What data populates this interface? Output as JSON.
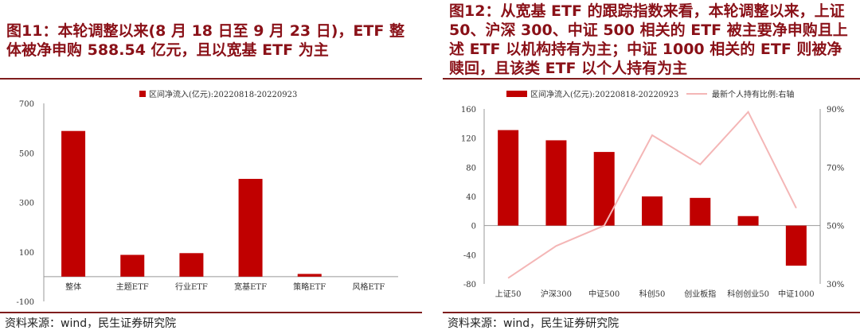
{
  "left": {
    "fig_title": "图11：本轮调整以来(8 月 18 日至 9 月 23 日)，ETF 整体被净申购 588.54 亿元，且以宽基 ETF 为主",
    "source": "资料来源：wind，民生证券研究院"
  },
  "right": {
    "fig_title": "图12：从宽基 ETF 的跟踪指数来看，本轮调整以来，上证 50、沪深 300、中证 500 相关的 ETF 被主要净申购且上述 ETF 以机构持有为主；中证 1000 相关的 ETF 则被净赎回，且该类 ETF 以个人持有为主",
    "source": "资料来源：wind，民生证券研究院"
  },
  "colors": {
    "bar": "#c00000",
    "line": "#f4b6b6",
    "title": "#8a1118",
    "rule": "#7f1d1d"
  },
  "chart_data": [
    {
      "type": "bar",
      "title": "",
      "categories": [
        "整体",
        "主题ETF",
        "行业ETF",
        "宽基ETF",
        "策略ETF",
        "风格ETF"
      ],
      "series": [
        {
          "name": "区间净流入(亿元):20220818-20220923",
          "values": [
            588.54,
            88,
            95,
            395,
            11,
            0
          ]
        }
      ],
      "y_ticks": [
        "700",
        "500",
        "300",
        "100",
        "-100"
      ],
      "ylim": [
        -100,
        700
      ],
      "legend": "top-center",
      "grid": false
    },
    {
      "type": "bar",
      "title": "",
      "categories": [
        "上证50",
        "沪深300",
        "中证500",
        "科创50",
        "创业板指",
        "科创创业50",
        "中证1000"
      ],
      "series": [
        {
          "name": "区间净流入(亿元):20220818-20220923",
          "type": "bar",
          "axis": "left",
          "values": [
            131,
            117,
            101,
            40,
            38,
            13,
            -55
          ]
        },
        {
          "name": "最新个人持有比例:右轴",
          "type": "line",
          "axis": "right",
          "values": [
            32,
            43,
            50,
            81,
            71,
            89,
            56
          ]
        }
      ],
      "y_ticks_left": [
        "160",
        "120",
        "80",
        "40",
        "0",
        "-40",
        "-80"
      ],
      "y_ticks_right": [
        "90%",
        "70%",
        "50%",
        "30%"
      ],
      "ylim_left": [
        -80,
        160
      ],
      "ylim_right": [
        30,
        90
      ],
      "legend": "top-center",
      "grid": false
    }
  ]
}
